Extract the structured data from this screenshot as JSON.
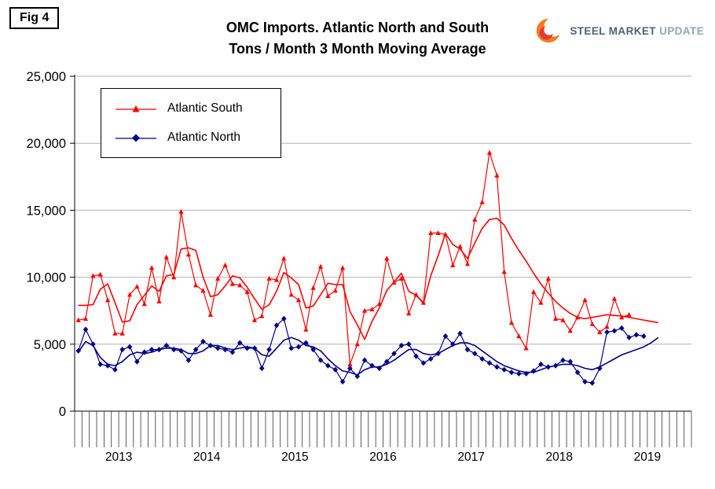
{
  "fig_label": "Fig 4",
  "title": {
    "line1": "OMC Imports. Atlantic North and South",
    "line2": "Tons / Month 3 Month Moving Average"
  },
  "logo": {
    "steel": "STEEL",
    "market": "MARKET",
    "update": "UPDATE"
  },
  "legend": [
    {
      "label": "Atlantic South",
      "color": "#FF0000",
      "marker": "triangle"
    },
    {
      "label": "Atlantic North",
      "color": "#00008B",
      "marker": "diamond"
    }
  ],
  "axes": {
    "y_ticks": [
      "25,000",
      "20,000",
      "15,000",
      "10,000",
      "5,000",
      "0"
    ],
    "y_tick_interval": 5000,
    "x_years": [
      "2013",
      "2014",
      "2015",
      "2016",
      "2017",
      "2018",
      "2019"
    ]
  },
  "chart_data": {
    "type": "line",
    "title": "OMC Imports. Atlantic North and South Tons / Month 3 Month Moving Average",
    "xlabel": "",
    "ylabel": "Tons / Month",
    "ylim": [
      0,
      25000
    ],
    "x_start": "2013-01",
    "x_axis_end": "2019-12",
    "x_unit": "month",
    "grid": "horizontal",
    "legend_position": "top-left",
    "series": [
      {
        "name": "Atlantic South",
        "color": "#FF0000",
        "marker": "triangle",
        "values": [
          6800,
          6900,
          10100,
          10200,
          8300,
          5800,
          5800,
          8700,
          9300,
          8000,
          10700,
          8200,
          11500,
          10000,
          14900,
          11700,
          9400,
          9000,
          7200,
          9900,
          10900,
          9500,
          9400,
          8900,
          6800,
          7100,
          9900,
          9800,
          11400,
          8700,
          8300,
          6100,
          9200,
          10800,
          8600,
          9000,
          10700,
          3500,
          5000,
          7500,
          7600,
          8000,
          11400,
          9600,
          9900,
          7300,
          8700,
          8100,
          13300,
          13300,
          13200,
          10900,
          12300,
          11000,
          14300,
          15600,
          19300,
          17600,
          10400,
          6600,
          5600,
          4700,
          8900,
          8100,
          9900,
          6900,
          6800,
          6000,
          7000,
          8300,
          6500,
          5900,
          6300,
          8400,
          7000,
          7200,
          null,
          null,
          null,
          null
        ]
      },
      {
        "name": "Atlantic North",
        "color": "#00008B",
        "marker": "diamond",
        "values": [
          4500,
          6100,
          5000,
          3500,
          3400,
          3100,
          4600,
          4800,
          3700,
          4400,
          4600,
          4600,
          4900,
          4600,
          4500,
          3800,
          4600,
          5200,
          4900,
          4700,
          4600,
          4400,
          5100,
          4700,
          4700,
          3200,
          4600,
          6400,
          6900,
          4700,
          4800,
          5100,
          4600,
          3800,
          3400,
          3100,
          2200,
          3200,
          2600,
          3800,
          3400,
          3200,
          3700,
          4300,
          4900,
          5000,
          4100,
          3600,
          3900,
          4300,
          5600,
          5000,
          5800,
          4600,
          4300,
          3900,
          3600,
          3300,
          3100,
          2900,
          2800,
          2800,
          3000,
          3500,
          3300,
          3400,
          3800,
          3700,
          2900,
          2200,
          2100,
          3200,
          5900,
          6000,
          6200,
          5500,
          5700,
          5600,
          null,
          null
        ]
      },
      {
        "name": "Atlantic South 3MMA",
        "color": "#FF0000",
        "marker": null,
        "values": [
          7900,
          7900,
          7950,
          9100,
          9500,
          8100,
          6650,
          6750,
          7950,
          8650,
          9350,
          8950,
          10100,
          10200,
          12100,
          12200,
          12000,
          10000,
          8550,
          8700,
          9350,
          10100,
          9950,
          9250,
          8400,
          7600,
          7950,
          8950,
          10350,
          9950,
          9450,
          7700,
          7850,
          8700,
          9550,
          9450,
          9450,
          7450,
          6450,
          5350,
          6700,
          7700,
          9000,
          9650,
          10300,
          8950,
          8650,
          8050,
          10100,
          11600,
          13250,
          12450,
          12100,
          11400,
          12550,
          13650,
          14300,
          14400,
          13900,
          12900,
          12000,
          11200,
          10300,
          9500,
          8800,
          8200,
          7700,
          7300,
          7000,
          6900,
          7000,
          7100,
          7200,
          7150,
          7100,
          7000,
          6900,
          6800,
          6700,
          6600
        ]
      },
      {
        "name": "Atlantic North 3MMA",
        "color": "#00008B",
        "marker": null,
        "values": [
          4400,
          5200,
          4900,
          4000,
          3500,
          3400,
          3700,
          4200,
          4400,
          4300,
          4400,
          4600,
          4700,
          4700,
          4600,
          4300,
          4300,
          4500,
          4900,
          4900,
          4700,
          4600,
          4700,
          4800,
          4700,
          4200,
          4100,
          4700,
          5300,
          5500,
          5300,
          4900,
          4800,
          4500,
          3900,
          3400,
          3000,
          2900,
          2700,
          3100,
          3300,
          3300,
          3500,
          3800,
          4200,
          4600,
          4600,
          4300,
          4200,
          4300,
          4600,
          4900,
          5100,
          5100,
          4900,
          4500,
          4100,
          3700,
          3400,
          3200,
          3000,
          2900,
          2900,
          3100,
          3300,
          3400,
          3500,
          3500,
          3400,
          3200,
          3100,
          3300,
          3600,
          3900,
          4200,
          4400,
          4600,
          4800,
          5100,
          5500
        ]
      }
    ]
  }
}
